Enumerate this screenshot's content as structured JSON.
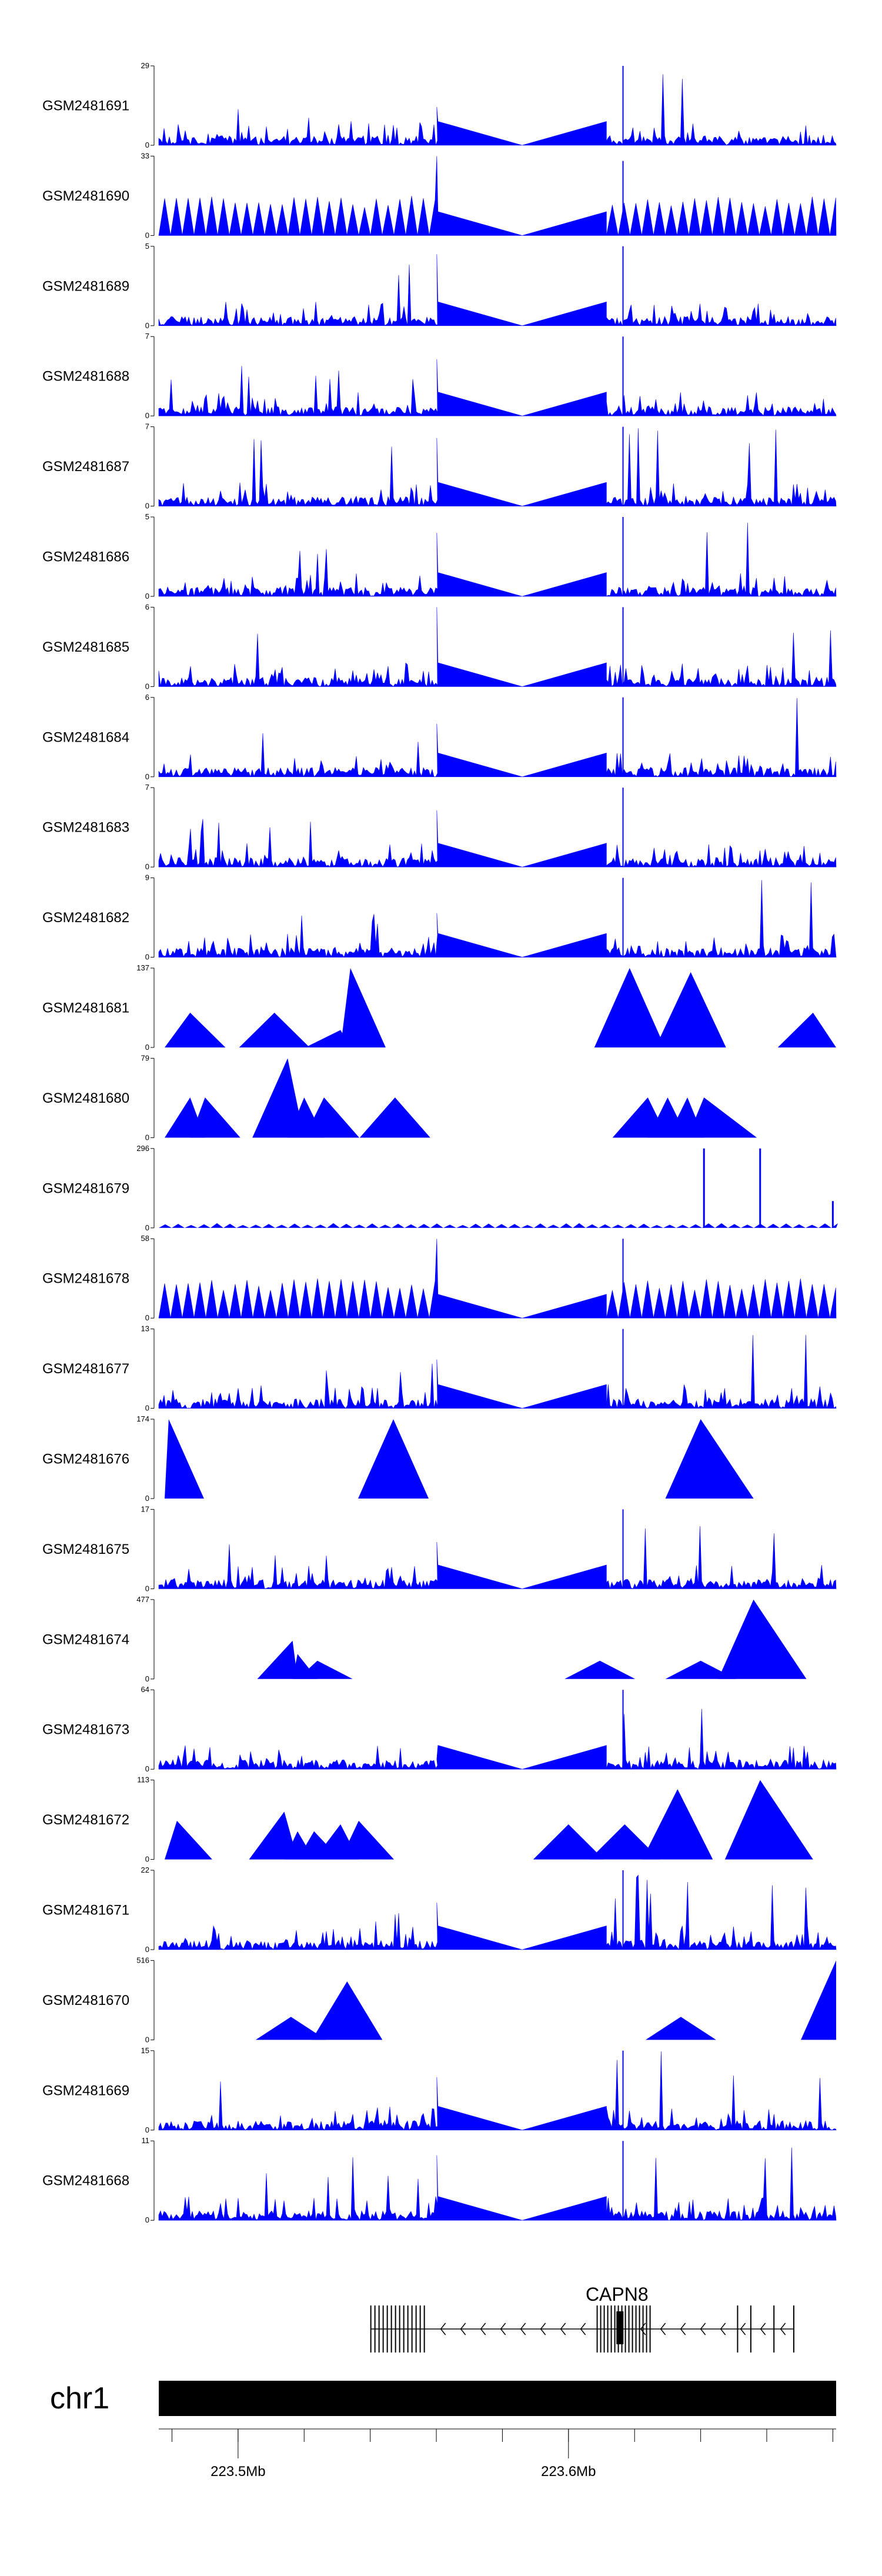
{
  "chart_data": {
    "type": "area",
    "title": "",
    "chromosome": "chr1",
    "xlim_mb": [
      223.476,
      223.681
    ],
    "colors": {
      "track": "#0000ff",
      "axis": "#000000",
      "ideogram": "#000000",
      "gene": "#000000"
    },
    "gene": {
      "name": "CAPN8",
      "start_mb": 223.54,
      "end_mb": 223.668,
      "strand": "-"
    },
    "genome_axis": {
      "tick_labels": [
        "223.5Mb",
        "223.6Mb"
      ],
      "tick_values_mb": [
        223.5,
        223.6
      ]
    },
    "tracks": [
      {
        "name": "GSM2481691",
        "ymin": 0,
        "ymax": 29,
        "style": "dense",
        "seed": 1,
        "left_peak": 14,
        "right_peak": 29
      },
      {
        "name": "GSM2481690",
        "ymin": 0,
        "ymax": 33,
        "style": "spiky",
        "seed": 2,
        "left_peak": 33,
        "right_peak": 31
      },
      {
        "name": "GSM2481689",
        "ymin": 0,
        "ymax": 5,
        "style": "dense",
        "seed": 3,
        "left_peak": 4.5,
        "right_peak": 5
      },
      {
        "name": "GSM2481688",
        "ymin": 0,
        "ymax": 7,
        "style": "dense",
        "seed": 4,
        "left_peak": 5,
        "right_peak": 7
      },
      {
        "name": "GSM2481687",
        "ymin": 0,
        "ymax": 7,
        "style": "dense",
        "seed": 5,
        "left_peak": 6,
        "right_peak": 7
      },
      {
        "name": "GSM2481686",
        "ymin": 0,
        "ymax": 5,
        "style": "dense",
        "seed": 6,
        "left_peak": 4,
        "right_peak": 5
      },
      {
        "name": "GSM2481685",
        "ymin": 0,
        "ymax": 6,
        "style": "dense",
        "seed": 7,
        "left_peak": 6,
        "right_peak": 6
      },
      {
        "name": "GSM2481684",
        "ymin": 0,
        "ymax": 6,
        "style": "dense",
        "seed": 8,
        "left_peak": 4,
        "right_peak": 6
      },
      {
        "name": "GSM2481683",
        "ymin": 0,
        "ymax": 7,
        "style": "dense",
        "seed": 9,
        "left_peak": 5,
        "right_peak": 7
      },
      {
        "name": "GSM2481682",
        "ymin": 0,
        "ymax": 9,
        "style": "dense",
        "seed": 10,
        "left_peak": 5,
        "right_peak": 9
      },
      {
        "name": "GSM2481681",
        "ymin": 0,
        "ymax": 137,
        "style": "triangles",
        "seed": 11,
        "peaks": [
          [
            223.4855,
            60
          ],
          [
            223.511,
            60
          ],
          [
            223.531,
            30
          ],
          [
            223.534,
            137
          ],
          [
            223.6185,
            137
          ],
          [
            223.637,
            130
          ],
          [
            223.674,
            60
          ]
        ]
      },
      {
        "name": "GSM2481680",
        "ymin": 0,
        "ymax": 79,
        "style": "triangles",
        "seed": 12,
        "peaks": [
          [
            223.4855,
            40
          ],
          [
            223.49,
            40
          ],
          [
            223.515,
            79
          ],
          [
            223.52,
            40
          ],
          [
            223.526,
            40
          ],
          [
            223.5475,
            40
          ],
          [
            223.624,
            40
          ],
          [
            223.63,
            40
          ],
          [
            223.636,
            40
          ],
          [
            223.641,
            40
          ]
        ]
      },
      {
        "name": "GSM2481679",
        "ymin": 0,
        "ymax": 296,
        "style": "smalltri",
        "seed": 13,
        "big_spikes": [
          [
            223.641,
            296
          ],
          [
            223.658,
            296
          ],
          [
            223.68,
            100
          ]
        ]
      },
      {
        "name": "GSM2481678",
        "ymin": 0,
        "ymax": 58,
        "style": "spiky",
        "seed": 14,
        "left_peak": 58,
        "right_peak": 58
      },
      {
        "name": "GSM2481677",
        "ymin": 0,
        "ymax": 13,
        "style": "dense",
        "seed": 15,
        "left_peak": 8,
        "right_peak": 13
      },
      {
        "name": "GSM2481676",
        "ymin": 0,
        "ymax": 174,
        "style": "triangles",
        "seed": 16,
        "peaks": [
          [
            223.479,
            174
          ],
          [
            223.547,
            174
          ],
          [
            223.64,
            174
          ]
        ]
      },
      {
        "name": "GSM2481675",
        "ymin": 0,
        "ymax": 17,
        "style": "dense",
        "seed": 17,
        "left_peak": 10,
        "right_peak": 17
      },
      {
        "name": "GSM2481674",
        "ymin": 0,
        "ymax": 477,
        "style": "triangles",
        "seed": 18,
        "peaks": [
          [
            223.518,
            150
          ],
          [
            223.5165,
            230
          ],
          [
            223.524,
            110
          ],
          [
            223.6095,
            110
          ],
          [
            223.64,
            110
          ],
          [
            223.656,
            477
          ]
        ]
      },
      {
        "name": "GSM2481673",
        "ymin": 0,
        "ymax": 64,
        "style": "dense",
        "seed": 19,
        "left_peak": 8,
        "right_peak": 64
      },
      {
        "name": "GSM2481672",
        "ymin": 0,
        "ymax": 113,
        "style": "triangles",
        "seed": 20,
        "peaks": [
          [
            223.4815,
            55
          ],
          [
            223.514,
            68
          ],
          [
            223.518,
            40
          ],
          [
            223.523,
            40
          ],
          [
            223.531,
            50
          ],
          [
            223.5365,
            55
          ],
          [
            223.6,
            50
          ],
          [
            223.617,
            50
          ],
          [
            223.633,
            100
          ],
          [
            223.658,
            113
          ]
        ]
      },
      {
        "name": "GSM2481671",
        "ymin": 0,
        "ymax": 22,
        "style": "dense",
        "seed": 21,
        "left_peak": 13,
        "right_peak": 22
      },
      {
        "name": "GSM2481670",
        "ymin": 0,
        "ymax": 516,
        "style": "triangles",
        "seed": 22,
        "peaks": [
          [
            223.516,
            150
          ],
          [
            223.533,
            380
          ],
          [
            223.634,
            150
          ],
          [
            223.681,
            516
          ]
        ]
      },
      {
        "name": "GSM2481669",
        "ymin": 0,
        "ymax": 15,
        "style": "dense",
        "seed": 23,
        "left_peak": 10,
        "right_peak": 15
      },
      {
        "name": "GSM2481668",
        "ymin": 0,
        "ymax": 11,
        "style": "dense",
        "seed": 24,
        "left_peak": 9,
        "right_peak": 11
      }
    ]
  }
}
